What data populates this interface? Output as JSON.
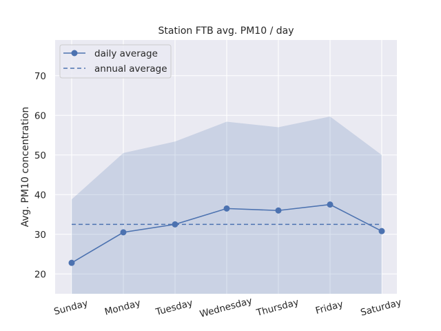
{
  "chart_data": {
    "type": "line",
    "title": "Station FTB avg. PM10 / day",
    "xlabel": "",
    "ylabel": "Avg. PM10 concentration",
    "categories": [
      "Sunday",
      "Monday",
      "Tuesday",
      "Wednesday",
      "Thursday",
      "Friday",
      "Saturday"
    ],
    "ylim": [
      15,
      79
    ],
    "yticks": [
      20,
      30,
      40,
      50,
      60,
      70
    ],
    "grid": true,
    "legend_position": "top-left",
    "series": [
      {
        "name": "daily average",
        "values": [
          22.8,
          30.5,
          32.5,
          36.5,
          36.0,
          37.5,
          30.8
        ],
        "color": "#4c72b0",
        "style": "solid",
        "marker": "circle"
      },
      {
        "name": "annual average",
        "values": [
          32.5,
          32.5,
          32.5,
          32.5,
          32.5,
          32.5,
          32.5
        ],
        "color": "#4c72b0",
        "style": "dashed"
      }
    ],
    "band": {
      "upper": [
        38.8,
        50.5,
        53.4,
        58.4,
        57.0,
        59.7,
        50.0
      ],
      "lower": [
        15,
        15,
        15,
        15,
        15,
        15,
        15
      ],
      "color": "#4c72b0"
    }
  },
  "colors": {
    "axes_background": "#eaeaf2",
    "grid": "#ffffff",
    "text": "#262626"
  }
}
